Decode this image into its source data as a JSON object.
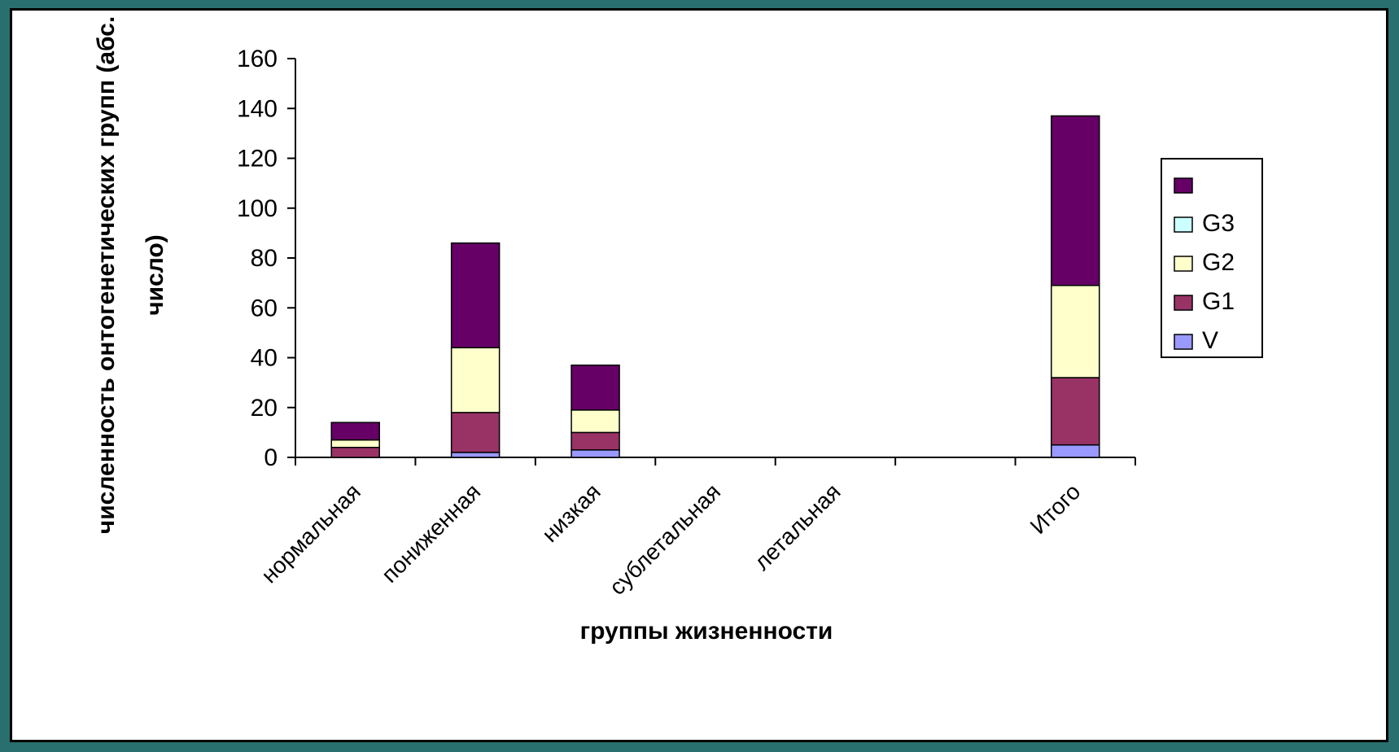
{
  "chart_data": {
    "type": "bar",
    "stacked": true,
    "categories": [
      "нормальная",
      "пониженная",
      "низкая",
      "сублетальная",
      "летальная",
      "",
      "Итого"
    ],
    "series": [
      {
        "name": "V",
        "color": "#9999ff",
        "values": [
          0,
          2,
          3,
          0,
          0,
          0,
          5
        ]
      },
      {
        "name": "G1",
        "color": "#993366",
        "values": [
          4,
          16,
          7,
          0,
          0,
          0,
          27
        ]
      },
      {
        "name": "G2",
        "color": "#ffffcc",
        "values": [
          3,
          26,
          9,
          0,
          0,
          0,
          37
        ]
      },
      {
        "name": "G3",
        "color": "#ccffff",
        "values": [
          0,
          0,
          0,
          0,
          0,
          0,
          0
        ]
      },
      {
        "name": "",
        "color": "#660066",
        "values": [
          7,
          42,
          18,
          0,
          0,
          0,
          68
        ]
      }
    ],
    "xlabel": "группы жизненности",
    "ylabel_line1": "численность онтогенетических групп (абс.",
    "ylabel_line2": "число)",
    "ylim": [
      0,
      160
    ],
    "yticks": [
      "0",
      "20",
      "40",
      "60",
      "80",
      "100",
      "120",
      "140",
      "160"
    ],
    "grid": false,
    "legend_position": "right",
    "legend_order": [
      "",
      "G3",
      "G2",
      "G1",
      "V"
    ]
  }
}
